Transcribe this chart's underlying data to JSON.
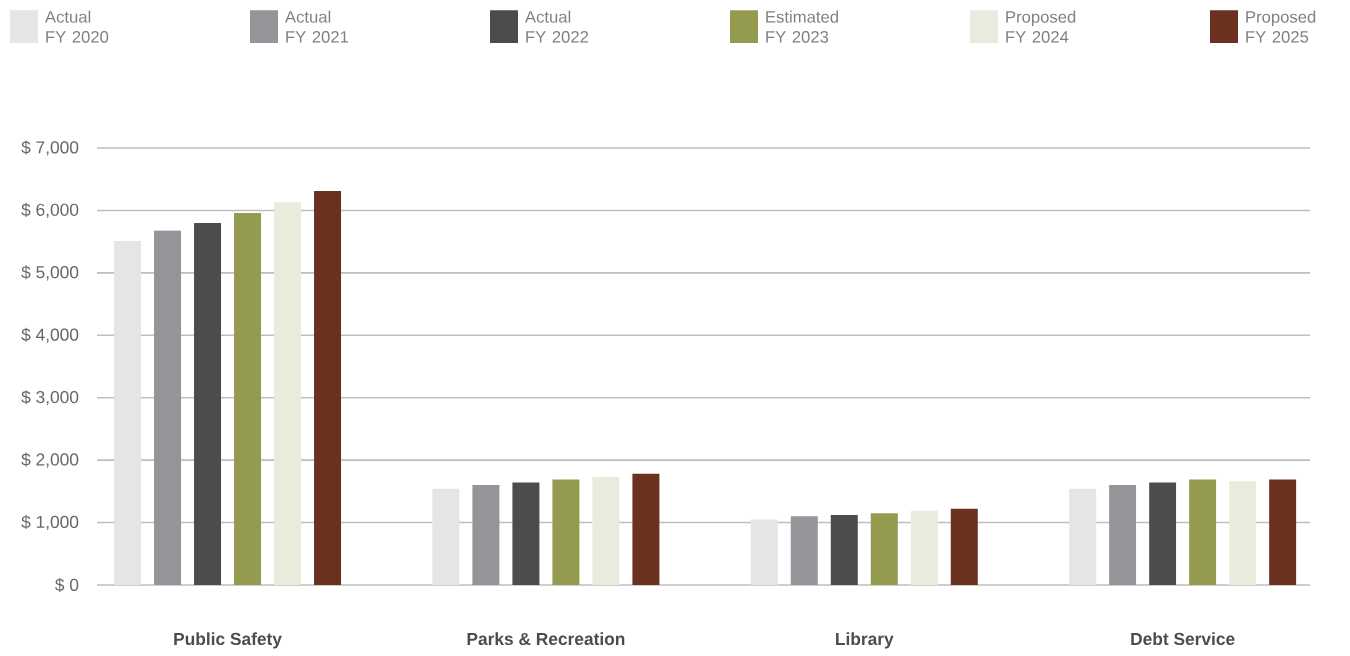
{
  "chart_data": {
    "type": "bar",
    "categories": [
      "Public Safety",
      "Parks & Recreation",
      "Library",
      "Debt Service"
    ],
    "series": [
      {
        "name": "Actual FY 2020",
        "color": "#e4e5e7",
        "values": [
          5510,
          1540,
          1050,
          1540
        ]
      },
      {
        "name": "Actual FY 2021",
        "color": "#949598",
        "values": [
          5680,
          1600,
          1100,
          1600
        ]
      },
      {
        "name": "Actual FY 2022",
        "color": "#4b4c4e",
        "values": [
          5800,
          1640,
          1120,
          1640
        ]
      },
      {
        "name": "Estimated FY 2023",
        "color": "#959b4e",
        "values": [
          5960,
          1690,
          1150,
          1690
        ]
      },
      {
        "name": "Proposed FY 2024",
        "color": "#eaebdc",
        "values": [
          6130,
          1730,
          1190,
          1660
        ]
      },
      {
        "name": "Proposed FY 2025",
        "color": "#6a311e",
        "values": [
          6310,
          1780,
          1220,
          1690
        ]
      }
    ],
    "ylim": [
      0,
      7000
    ],
    "yticks": [
      {
        "value": 0,
        "label": "$ 0"
      },
      {
        "value": 1000,
        "label": "$ 1,000"
      },
      {
        "value": 2000,
        "label": "$ 2,000"
      },
      {
        "value": 3000,
        "label": "$ 3,000"
      },
      {
        "value": 4000,
        "label": "$ 4,000"
      },
      {
        "value": 5000,
        "label": "$ 5,000"
      },
      {
        "value": 6000,
        "label": "$ 6,000"
      },
      {
        "value": 7000,
        "label": "$ 7,000"
      }
    ],
    "grid": "y",
    "legend": "top"
  }
}
